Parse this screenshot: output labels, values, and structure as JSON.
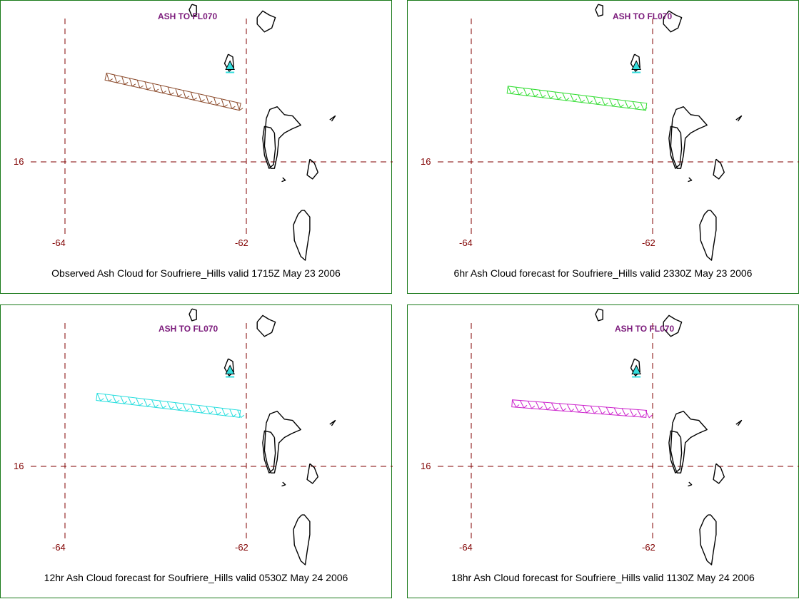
{
  "panels": [
    {
      "caption": "Observed Ash Cloud for Soufriere_Hills valid 1715Z May 23 2006",
      "top_label": "ASH TO FL070",
      "ash_color": "#8b4a2b",
      "ash_start": [
        -63.55,
        16.65
      ],
      "ash_end": [
        -62.07,
        16.42
      ]
    },
    {
      "caption": "6hr Ash Cloud forecast for Soufriere_Hills valid 2330Z May 23 2006",
      "top_label": "ASH TO FL070",
      "ash_color": "#33dd33",
      "ash_start": [
        -63.6,
        16.55
      ],
      "ash_end": [
        -62.07,
        16.42
      ]
    },
    {
      "caption": "12hr Ash Cloud forecast for Soufriere_Hills valid 0530Z May 24 2006",
      "top_label": "ASH TO FL070",
      "ash_color": "#22dddd",
      "ash_start": [
        -63.65,
        16.53
      ],
      "ash_end": [
        -62.07,
        16.4
      ]
    },
    {
      "caption": "18hr Ash Cloud forecast for Soufriere_Hills valid 1130Z May 24 2006",
      "top_label": "ASH TO FL070",
      "ash_color": "#cc22cc",
      "ash_start": [
        -63.55,
        16.48
      ],
      "ash_end": [
        -62.07,
        16.4
      ]
    }
  ],
  "grid": {
    "lon_labels": [
      "-64",
      "-62"
    ],
    "lat_labels": [
      "16"
    ],
    "lon_values": [
      -64,
      -62
    ],
    "lat_values": [
      16
    ],
    "color": "#800000"
  },
  "volcano_marker_color": "#33dddd",
  "coastline_color": "#000000"
}
